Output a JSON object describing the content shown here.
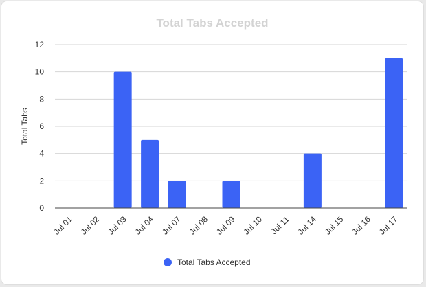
{
  "chart_data": {
    "type": "bar",
    "title": "Total Tabs Accepted",
    "xlabel": "",
    "ylabel": "Total Tabs",
    "categories": [
      "Jul 01",
      "Jul 02",
      "Jul 03",
      "Jul 04",
      "Jul 07",
      "Jul 08",
      "Jul 09",
      "Jul 10",
      "Jul 11",
      "Jul 14",
      "Jul 15",
      "Jul 16",
      "Jul 17"
    ],
    "series": [
      {
        "name": "Total Tabs Accepted",
        "values": [
          0,
          0,
          10,
          5,
          2,
          0,
          2,
          0,
          0,
          4,
          0,
          0,
          11
        ]
      }
    ],
    "ylim": [
      0,
      12
    ],
    "yticks": [
      0,
      2,
      4,
      6,
      8,
      10,
      12
    ],
    "grid": true,
    "legend_position": "bottom",
    "colors": {
      "bar": "#3b63f5",
      "grid": "#d6d6d6",
      "axis": "#444444",
      "tick_text": "#333333",
      "title": "#d3d3d3"
    }
  }
}
